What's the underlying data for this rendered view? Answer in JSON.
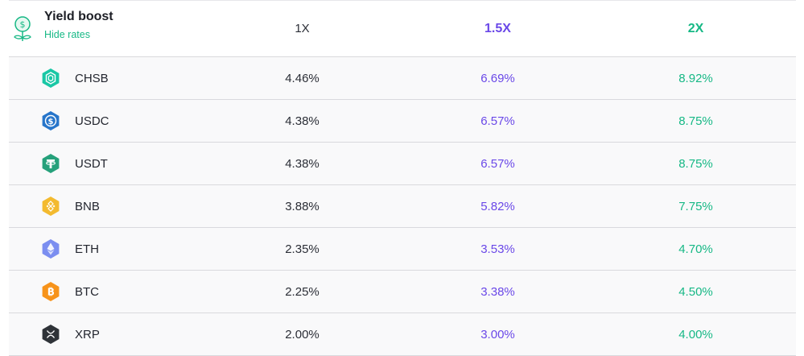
{
  "header": {
    "title": "Yield boost",
    "hide_link": "Hide rates",
    "columns": [
      "1X",
      "1.5X",
      "2X"
    ]
  },
  "colors": {
    "tier_1x": "#2b2e36",
    "tier_15x": "#6a48e8",
    "tier_2x": "#16b885"
  },
  "rows": [
    {
      "asset": "CHSB",
      "icon": "chsb-coin-icon",
      "r1": "4.46%",
      "r15": "6.69%",
      "r2": "8.92%"
    },
    {
      "asset": "USDC",
      "icon": "usdc-coin-icon",
      "r1": "4.38%",
      "r15": "6.57%",
      "r2": "8.75%"
    },
    {
      "asset": "USDT",
      "icon": "usdt-coin-icon",
      "r1": "4.38%",
      "r15": "6.57%",
      "r2": "8.75%"
    },
    {
      "asset": "BNB",
      "icon": "bnb-coin-icon",
      "r1": "3.88%",
      "r15": "5.82%",
      "r2": "7.75%"
    },
    {
      "asset": "ETH",
      "icon": "eth-coin-icon",
      "r1": "2.35%",
      "r15": "3.53%",
      "r2": "4.70%"
    },
    {
      "asset": "BTC",
      "icon": "btc-coin-icon",
      "r1": "2.25%",
      "r15": "3.38%",
      "r2": "4.50%"
    },
    {
      "asset": "XRP",
      "icon": "xrp-coin-icon",
      "r1": "2.00%",
      "r15": "3.00%",
      "r2": "4.00%"
    }
  ]
}
